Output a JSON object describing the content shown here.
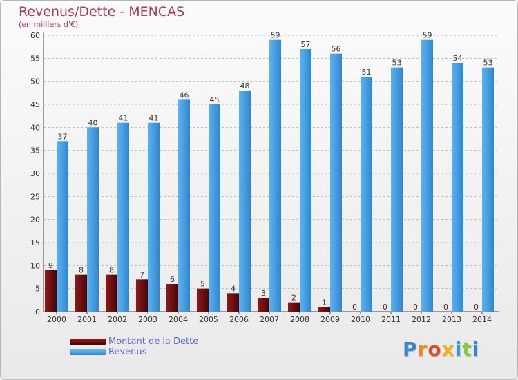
{
  "title": "Revenus/Dette - MENCAS",
  "subtitle": "(en milliers d'€)",
  "logo_text": "Proxiti",
  "colors": {
    "dette": "#7a0f12",
    "revenus": "#4aa3e8",
    "title": "#b03a5c",
    "legend_text": "#5b6bd6"
  },
  "chart_data": {
    "type": "bar",
    "categories": [
      "2000",
      "2001",
      "2002",
      "2003",
      "2004",
      "2005",
      "2006",
      "2007",
      "2008",
      "2009",
      "2010",
      "2011",
      "2012",
      "2013",
      "2014"
    ],
    "series": [
      {
        "name": "Montant de la Dette",
        "values": [
          9,
          8,
          8,
          7,
          6,
          5,
          4,
          3,
          2,
          1,
          0,
          0,
          0,
          0,
          0
        ]
      },
      {
        "name": "Revenus",
        "values": [
          37,
          40,
          41,
          41,
          46,
          45,
          48,
          59,
          57,
          56,
          51,
          53,
          59,
          54,
          53
        ]
      }
    ],
    "ylim": [
      0,
      60
    ],
    "yticks": [
      0,
      5,
      10,
      15,
      20,
      25,
      30,
      35,
      40,
      45,
      50,
      55,
      60
    ],
    "grid": true,
    "legend_position": "bottom-left"
  }
}
